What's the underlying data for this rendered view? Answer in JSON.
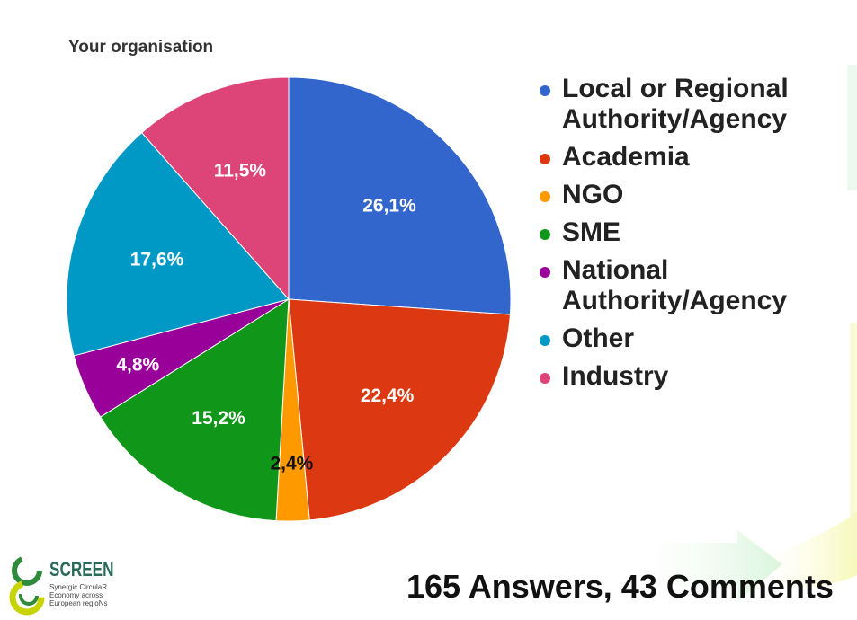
{
  "chart_data": {
    "type": "pie",
    "title": "Your organisation",
    "categories": [
      "Local or Regional Authority/Agency",
      "Academia",
      "NGO",
      "SME",
      "National Authority/Agency",
      "Other",
      "Industry"
    ],
    "values": [
      26.1,
      22.4,
      2.4,
      15.2,
      4.8,
      17.6,
      11.5
    ],
    "value_labels": [
      "26,1%",
      "22,4%",
      "2,4%",
      "15,2%",
      "4,8%",
      "17,6%",
      "11,5%"
    ],
    "colors": [
      "#3366cc",
      "#dc3912",
      "#ff9900",
      "#109618",
      "#990099",
      "#0099c6",
      "#dd4477"
    ],
    "label_colors": [
      "#ffffff",
      "#ffffff",
      "#111111",
      "#ffffff",
      "#ffffff",
      "#ffffff",
      "#ffffff"
    ],
    "legend": {
      "position": "right",
      "entries": [
        {
          "text": "Local or Regional",
          "text2": "Authority/Agency"
        },
        {
          "text": "Academia",
          "text2": ""
        },
        {
          "text": "NGO",
          "text2": ""
        },
        {
          "text": "SME",
          "text2": ""
        },
        {
          "text": "National",
          "text2": "Authority/Agency"
        },
        {
          "text": "Other",
          "text2": ""
        },
        {
          "text": "Industry",
          "text2": ""
        }
      ]
    },
    "start_angle_deg": 0,
    "direction": "clockwise"
  },
  "footer": {
    "summary": "165 Answers, 43 Comments"
  },
  "logo": {
    "name": "SCREEN",
    "tagline_1": "Synergic CirculaR",
    "tagline_2": "Economy across",
    "tagline_3": "European regioNs"
  }
}
